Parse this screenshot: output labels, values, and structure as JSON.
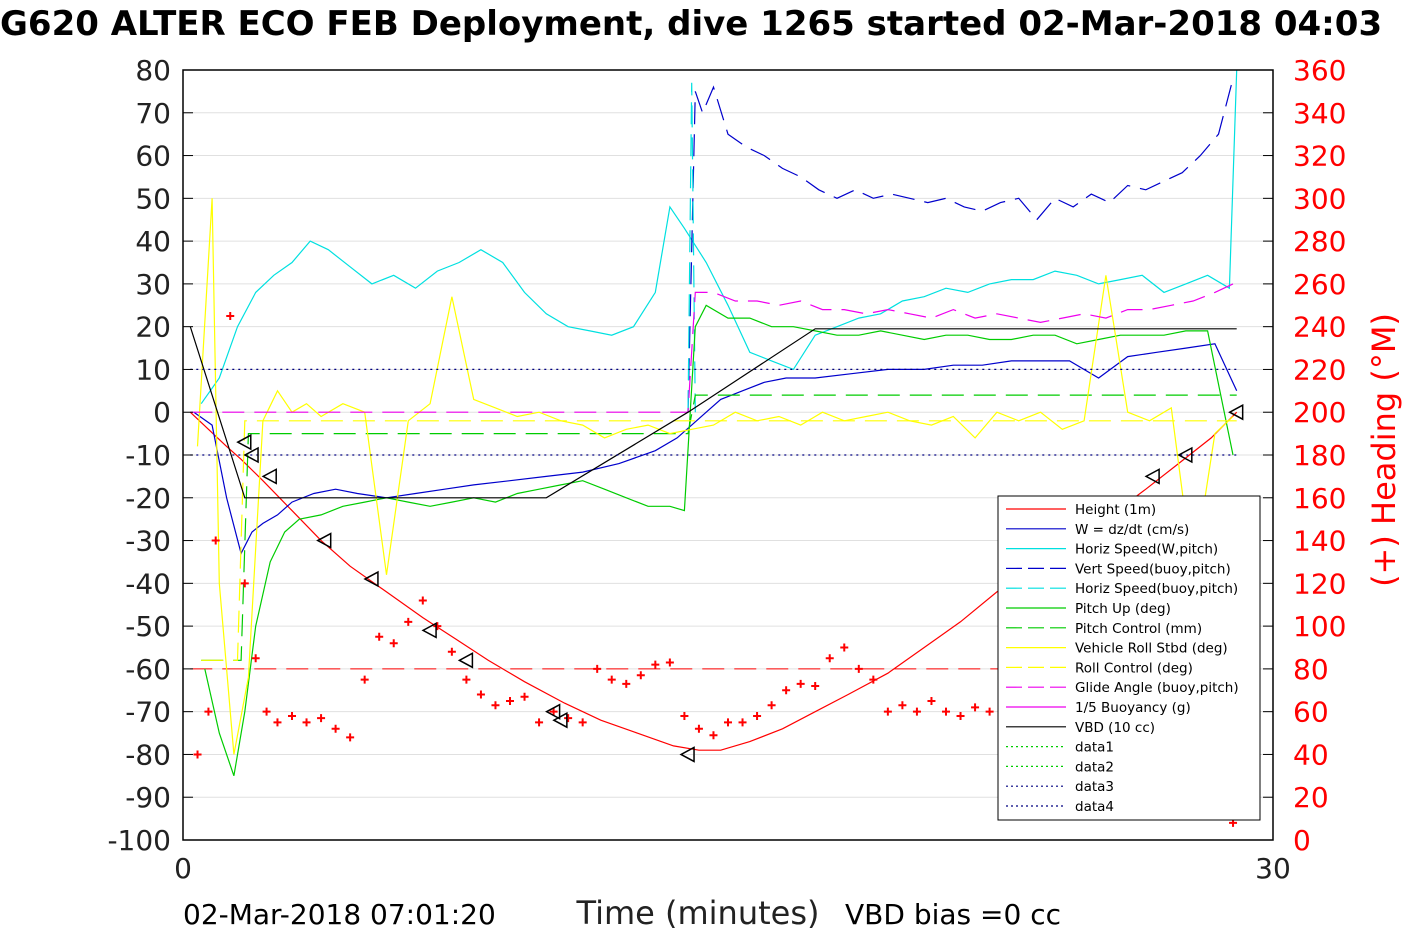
{
  "chart_data": {
    "type": "line",
    "title": "G620 ALTER ECO FEB Deployment, dive 1265 started 02-Mar-2018 04:03",
    "xlabel": "Time (minutes)",
    "ylabel": "",
    "y2label": "(+) Heading (°M)",
    "xlim": [
      0,
      30
    ],
    "ylim": [
      -100,
      80
    ],
    "y2lim": [
      0,
      360
    ],
    "x_ticks": [
      "0",
      "30"
    ],
    "y_ticks": [
      "80",
      "70",
      "60",
      "50",
      "40",
      "30",
      "20",
      "10",
      "0",
      "-10",
      "-20",
      "-30",
      "-40",
      "-50",
      "-60",
      "-70",
      "-80",
      "-90",
      "-100"
    ],
    "y2_ticks": [
      "360",
      "340",
      "320",
      "300",
      "280",
      "260",
      "240",
      "220",
      "200",
      "180",
      "160",
      "140",
      "120",
      "100",
      "80",
      "60",
      "40",
      "20",
      "0"
    ],
    "grid": true,
    "legend_position": "bottom-right",
    "footer_left": "02-Mar-2018 07:01:20",
    "footer_right": "VBD bias =0 cc",
    "colors": {
      "heading": "#ff0000",
      "right_axis": "#ff0000"
    },
    "series": [
      {
        "name": "Height (1m)",
        "color": "#ff0000",
        "style": "solid",
        "x": [
          0.2,
          1.2,
          1.6,
          2.2,
          3.0,
          3.8,
          4.6,
          5.6,
          6.6,
          7.5,
          8.4,
          9.4,
          10.5,
          11.5,
          12.5,
          13.5,
          14.2,
          14.8,
          15.6,
          16.5,
          17.4,
          18.3,
          19.4,
          20.4,
          21.4,
          22.4,
          23.4,
          24.4,
          25.4,
          26.5,
          27.4,
          28.3,
          29.0
        ],
        "y": [
          0,
          -8,
          -11,
          -16,
          -23,
          -30,
          -36,
          -42,
          -48,
          -53,
          -58,
          -63,
          -68,
          -72,
          -75,
          -78,
          -79,
          -79,
          -77,
          -74,
          -70,
          -66,
          -61,
          -55,
          -49,
          -42,
          -37,
          -32,
          -25,
          -18,
          -12,
          -6,
          0
        ]
      },
      {
        "name": "W = dz/dt (cm/s)",
        "color": "#0000cc",
        "style": "solid",
        "x": [
          0.3,
          0.8,
          1.2,
          1.6,
          1.9,
          2.2,
          2.6,
          3.0,
          3.6,
          4.2,
          4.8,
          5.6,
          6.4,
          7.2,
          8.0,
          9.0,
          10.0,
          11.0,
          12.0,
          13.0,
          13.6,
          14.0,
          14.4,
          14.8,
          15.4,
          16.0,
          16.6,
          17.4,
          18.4,
          19.4,
          20.4,
          21.2,
          22.0,
          22.8,
          23.6,
          24.4,
          25.2,
          26.0,
          26.8,
          27.6,
          28.4,
          29.0
        ],
        "y": [
          0,
          -3,
          -20,
          -33,
          -28,
          -26,
          -24,
          -21,
          -19,
          -18,
          -19,
          -20,
          -19,
          -18,
          -17,
          -16,
          -15,
          -14,
          -12,
          -9,
          -6,
          -3,
          0,
          3,
          5,
          7,
          8,
          8,
          9,
          10,
          10,
          11,
          11,
          12,
          12,
          12,
          8,
          13,
          14,
          15,
          16,
          5
        ]
      },
      {
        "name": "Horiz Speed(W,pitch)",
        "color": "#00e0e0",
        "style": "solid",
        "x": [
          0.5,
          1.0,
          1.5,
          2.0,
          2.5,
          3.0,
          3.5,
          4.0,
          4.6,
          5.2,
          5.8,
          6.4,
          7.0,
          7.6,
          8.2,
          8.8,
          9.4,
          10.0,
          10.6,
          11.2,
          11.8,
          12.4,
          13.0,
          13.4,
          13.8,
          14.4,
          15.0,
          15.6,
          16.2,
          16.8,
          17.4,
          18.0,
          18.6,
          19.2,
          19.8,
          20.4,
          21.0,
          21.6,
          22.2,
          22.8,
          23.4,
          24.0,
          24.6,
          25.2,
          25.8,
          26.4,
          27.0,
          27.6,
          28.2,
          28.8,
          29.0
        ],
        "y": [
          2,
          8,
          20,
          28,
          32,
          35,
          40,
          38,
          34,
          30,
          32,
          29,
          33,
          35,
          38,
          35,
          28,
          23,
          20,
          19,
          18,
          20,
          28,
          48,
          43,
          35,
          25,
          14,
          12,
          10,
          18,
          20,
          22,
          23,
          26,
          27,
          29,
          28,
          30,
          31,
          31,
          33,
          32,
          30,
          31,
          32,
          28,
          30,
          32,
          29,
          80
        ]
      },
      {
        "name": "Vert Speed(buoy,pitch)",
        "color": "#0000cc",
        "style": "dashed",
        "x": [
          13.9,
          14.1,
          14.3,
          14.6,
          15.0,
          15.5,
          16.0,
          16.5,
          17.0,
          17.5,
          18.0,
          18.5,
          19.0,
          19.5,
          20.0,
          20.5,
          21.0,
          21.5,
          22.0,
          22.5,
          23.0,
          23.5,
          24.0,
          24.5,
          25.0,
          25.5,
          26.0,
          26.5,
          27.0,
          27.5,
          28.0,
          28.5,
          28.9
        ],
        "y": [
          0,
          75,
          70,
          76,
          65,
          62,
          60,
          57,
          55,
          52,
          50,
          52,
          50,
          51,
          50,
          49,
          50,
          48,
          47,
          49,
          50,
          45,
          50,
          48,
          51,
          49,
          53,
          52,
          54,
          56,
          60,
          65,
          78
        ]
      },
      {
        "name": "Horiz Speed(buoy,pitch)",
        "color": "#00e0e0",
        "style": "dashed",
        "x": [
          13.9,
          14.0,
          14.1
        ],
        "y": [
          0,
          77,
          0
        ]
      },
      {
        "name": "Pitch Up (deg)",
        "color": "#00cc00",
        "style": "solid",
        "x": [
          0.6,
          1.0,
          1.4,
          1.7,
          2.0,
          2.4,
          2.8,
          3.2,
          3.8,
          4.4,
          5.0,
          5.6,
          6.2,
          6.8,
          7.4,
          8.0,
          8.6,
          9.2,
          9.8,
          10.4,
          11.0,
          11.6,
          12.2,
          12.8,
          13.4,
          13.8,
          14.1,
          14.4,
          15.0,
          15.6,
          16.2,
          16.8,
          17.4,
          18.0,
          18.6,
          19.2,
          19.8,
          20.4,
          21.0,
          21.6,
          22.2,
          22.8,
          23.4,
          24.0,
          24.6,
          25.2,
          25.8,
          26.4,
          27.0,
          27.6,
          28.2,
          28.9
        ],
        "y": [
          -60,
          -75,
          -85,
          -70,
          -50,
          -35,
          -28,
          -25,
          -24,
          -22,
          -21,
          -20,
          -21,
          -22,
          -21,
          -20,
          -21,
          -19,
          -18,
          -17,
          -16,
          -18,
          -20,
          -22,
          -22,
          -23,
          20,
          25,
          22,
          22,
          20,
          20,
          19,
          18,
          18,
          19,
          18,
          17,
          18,
          18,
          17,
          17,
          18,
          18,
          16,
          17,
          18,
          18,
          18,
          19,
          19,
          -10
        ]
      },
      {
        "name": "Pitch Control (mm)",
        "color": "#00cc00",
        "style": "dashed",
        "x": [
          0.5,
          1.6,
          1.8,
          13.9,
          14.1,
          29.0
        ],
        "y": [
          -58,
          -58,
          -5,
          -5,
          4,
          4
        ]
      },
      {
        "name": "Vehicle Roll Stbd (deg)",
        "color": "#ffff00",
        "style": "solid",
        "x": [
          0.4,
          0.8,
          1.0,
          1.4,
          1.8,
          2.2,
          2.6,
          3.0,
          3.4,
          3.8,
          4.4,
          5.0,
          5.6,
          6.2,
          6.8,
          7.4,
          8.0,
          8.6,
          9.2,
          9.8,
          10.4,
          11.0,
          11.6,
          12.2,
          12.8,
          13.4,
          14.0,
          14.6,
          15.2,
          15.8,
          16.4,
          17.0,
          17.6,
          18.2,
          18.8,
          19.4,
          20.0,
          20.6,
          21.2,
          21.8,
          22.4,
          23.0,
          23.6,
          24.2,
          24.8,
          25.4,
          26.0,
          26.6,
          27.2,
          27.8,
          28.4,
          28.9
        ],
        "y": [
          -8,
          50,
          -40,
          -80,
          -62,
          -2,
          5,
          0,
          2,
          -1,
          2,
          0,
          -38,
          -2,
          2,
          27,
          3,
          1,
          -1,
          0,
          -2,
          -3,
          -6,
          -4,
          -3,
          -5,
          -4,
          -3,
          0,
          -2,
          -1,
          -3,
          0,
          -2,
          -1,
          0,
          -2,
          -3,
          -1,
          -6,
          0,
          -2,
          0,
          -4,
          -2,
          32,
          0,
          -2,
          1,
          -38,
          -5,
          -1
        ]
      },
      {
        "name": "Roll Control (deg)",
        "color": "#ffff00",
        "style": "dashed",
        "x": [
          0.5,
          1.5,
          1.7,
          29.0
        ],
        "y": [
          -58,
          -58,
          -2,
          -2
        ]
      },
      {
        "name": "Glide Angle (buoy,pitch)",
        "color": "#ee00ee",
        "style": "dashed",
        "x": [
          0.2,
          13.9,
          14.1,
          14.6,
          15.2,
          15.8,
          16.4,
          17.0,
          17.6,
          18.2,
          18.8,
          19.4,
          20.0,
          20.6,
          21.2,
          21.8,
          22.4,
          23.0,
          23.6,
          24.2,
          24.8,
          25.4,
          26.0,
          26.6,
          27.2,
          27.8,
          28.4,
          28.9
        ],
        "y": [
          0,
          0,
          28,
          28,
          26,
          26,
          25,
          26,
          24,
          24,
          23,
          24,
          23,
          22,
          24,
          22,
          23,
          22,
          21,
          22,
          23,
          22,
          24,
          24,
          25,
          26,
          28,
          30
        ]
      },
      {
        "name": "1/5 Buoyancy (g)",
        "color": "#ee00ee",
        "style": "solid",
        "x": [],
        "y": []
      },
      {
        "name": "VBD (10 cc)",
        "color": "#000000",
        "style": "solid",
        "x": [
          0.2,
          1.7,
          10.0,
          13.9,
          17.4,
          29.0
        ],
        "y": [
          20,
          -20,
          -20,
          0,
          19.5,
          19.5
        ]
      },
      {
        "name": "data1",
        "color": "#00cc00",
        "style": "dotted",
        "x": [],
        "y": []
      },
      {
        "name": "data2",
        "color": "#00cc00",
        "style": "dotted",
        "x": [],
        "y": []
      },
      {
        "name": "data3",
        "color": "#000080",
        "style": "dotted",
        "x": [
          0.2,
          29.0
        ],
        "y": [
          10,
          10
        ]
      },
      {
        "name": "data4",
        "color": "#000080",
        "style": "dotted",
        "x": [
          0.2,
          29.0
        ],
        "y": [
          -10,
          -10
        ]
      }
    ],
    "heading_reference_line": {
      "color": "#ff0000",
      "style": "dashed",
      "heading": 80
    },
    "heading_points": {
      "x": [
        0.4,
        0.7,
        0.9,
        1.3,
        1.7,
        2.0,
        2.3,
        2.6,
        3.0,
        3.4,
        3.8,
        4.2,
        4.6,
        5.0,
        5.4,
        5.8,
        6.2,
        6.6,
        7.0,
        7.4,
        7.8,
        8.2,
        8.6,
        9.0,
        9.4,
        9.8,
        10.2,
        10.6,
        11.0,
        11.4,
        11.8,
        12.2,
        12.6,
        13.0,
        13.4,
        13.8,
        14.2,
        14.6,
        15.0,
        15.4,
        15.8,
        16.2,
        16.6,
        17.0,
        17.4,
        17.8,
        18.2,
        18.6,
        19.0,
        19.4,
        19.8,
        20.2,
        20.6,
        21.0,
        21.4,
        21.8,
        22.2,
        22.6,
        23.0,
        23.4,
        23.8,
        24.2,
        24.6,
        25.0,
        25.4,
        25.8,
        26.2,
        26.6,
        27.0,
        27.4,
        27.8,
        28.2,
        28.6,
        28.9
      ],
      "y": [
        40,
        60,
        140,
        245,
        120,
        85,
        60,
        55,
        58,
        55,
        57,
        52,
        48,
        75,
        95,
        92,
        102,
        112,
        100,
        88,
        75,
        68,
        63,
        65,
        67,
        55,
        60,
        57,
        55,
        80,
        75,
        73,
        77,
        82,
        83,
        58,
        52,
        49,
        55,
        55,
        58,
        63,
        70,
        73,
        72,
        85,
        90,
        80,
        75,
        60,
        63,
        60,
        65,
        60,
        58,
        62,
        60,
        55,
        59,
        62,
        75,
        130,
        145,
        140,
        125,
        110,
        60,
        65,
        58,
        85,
        60,
        60,
        80,
        8
      ]
    },
    "dive_markers": {
      "x": [
        1.7,
        1.9,
        2.4,
        3.9,
        5.2,
        6.8,
        7.8,
        10.2,
        10.4,
        13.9,
        24.6,
        25.2,
        26.7,
        27.6,
        29.0
      ],
      "y": [
        -7,
        -10,
        -15,
        -30,
        -39,
        -51,
        -58,
        -70,
        -72,
        -80,
        -30,
        -27,
        -15,
        -10,
        0
      ]
    }
  }
}
